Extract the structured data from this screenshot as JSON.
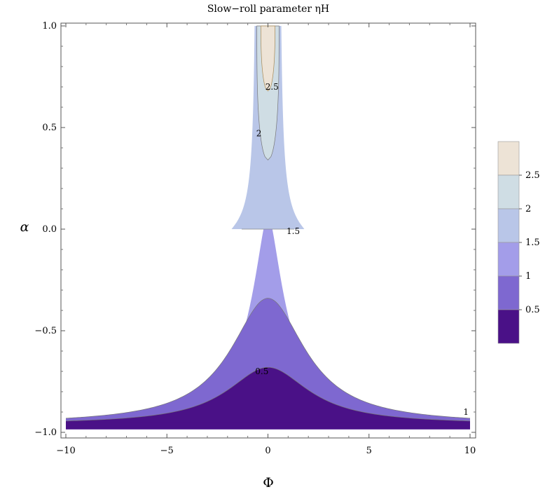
{
  "chart_data": {
    "type": "contour",
    "title": "Slow−roll parameter ηH",
    "xlabel": "Φ",
    "ylabel": "α",
    "xlim": [
      -10,
      10
    ],
    "ylim": [
      -1.0,
      1.0
    ],
    "x_ticks": [
      "−10",
      "−5",
      "0",
      "5",
      "10"
    ],
    "x_tick_values": [
      -10,
      -5,
      0,
      5,
      10
    ],
    "y_ticks": [
      "−1.0",
      "−0.5",
      "0.0",
      "0.5",
      "1.0"
    ],
    "y_tick_values": [
      -1.0,
      -0.5,
      0.0,
      0.5,
      1.0
    ],
    "levels": [
      0.5,
      1,
      1.5,
      2,
      2.5
    ],
    "level_colors": [
      "#4a1187",
      "#7e68d0",
      "#a39de9",
      "#b9c6e8",
      "#cfdde4",
      "#ede3d6"
    ],
    "legend_labels": [
      "0.5",
      "1",
      "1.5",
      "2",
      "2.5"
    ],
    "legend_position": "right",
    "contour_labels": [
      {
        "text": "2.5",
        "x": 0.2,
        "y": 0.7
      },
      {
        "text": "2",
        "x": -0.45,
        "y": 0.47
      },
      {
        "text": "1.5",
        "x": 1.25,
        "y": -0.01
      },
      {
        "text": "0.5",
        "x": -0.3,
        "y": -0.7
      },
      {
        "text": "1",
        "x": 9.8,
        "y": -0.9
      }
    ]
  }
}
